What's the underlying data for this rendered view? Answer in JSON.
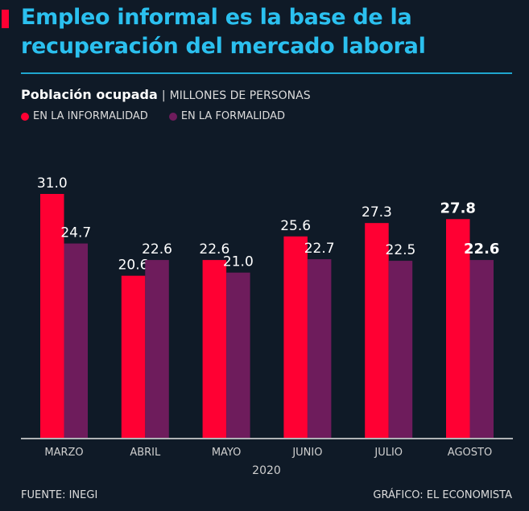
{
  "header": {
    "title": "Empleo informal es la base de la recuperación del mercado laboral",
    "subtitle_bold": "Población ocupada",
    "subtitle_separator": "|",
    "subtitle_unit": "MILLONES DE PERSONAS"
  },
  "colors": {
    "accent": "#ff0033",
    "title": "#2bc0ef",
    "informal": "#ff0033",
    "formal": "#6e1c5c",
    "background": "#0f1a27"
  },
  "chart_data": {
    "type": "bar",
    "title": "Población ocupada",
    "ylabel": "Millones de personas",
    "xlabel": "2020",
    "categories": [
      "MARZO",
      "ABRIL",
      "MAYO",
      "JUNIO",
      "JULIO",
      "AGOSTO"
    ],
    "series": [
      {
        "name": "EN LA INFORMALIDAD",
        "values": [
          31.0,
          20.6,
          22.6,
          25.6,
          27.3,
          27.8
        ]
      },
      {
        "name": "EN LA FORMALIDAD",
        "values": [
          24.7,
          22.6,
          21.0,
          22.7,
          22.5,
          22.6
        ]
      }
    ],
    "value_labels": [
      [
        "31.0",
        "20.6",
        "22.6",
        "25.6",
        "27.3",
        "27.8"
      ],
      [
        "24.7",
        "22.6",
        "21.0",
        "22.7",
        "22.5",
        "22.6"
      ]
    ],
    "highlighted_category": "AGOSTO",
    "ylim": [
      0,
      31
    ],
    "grid": false,
    "legend_position": "top-left"
  },
  "footer": {
    "source": "FUENTE: INEGI",
    "credit": "GRÁFICO: EL ECONOMISTA"
  }
}
